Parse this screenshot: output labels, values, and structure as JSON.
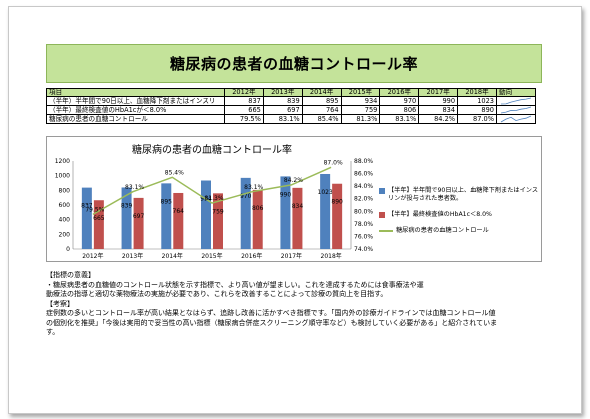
{
  "title": "糖尿病の患者の血糖コントロール率",
  "table": {
    "header_item": "項目",
    "years": [
      "2012年",
      "2013年",
      "2014年",
      "2015年",
      "2016年",
      "2017年",
      "2018年"
    ],
    "header_trend": "動向",
    "rows": [
      {
        "label": "（半年）半年間で90日以上、血糖降下剤またはインスリ",
        "values": [
          "837",
          "839",
          "895",
          "934",
          "970",
          "990",
          "1023"
        ]
      },
      {
        "label": "（半年）最終検査値のHbA1cが＜8.0%",
        "values": [
          "665",
          "697",
          "764",
          "759",
          "806",
          "834",
          "890"
        ]
      },
      {
        "label": "糖尿病の患者の血糖コントロール",
        "values": [
          "79.5%",
          "83.1%",
          "85.4%",
          "81.3%",
          "83.1%",
          "84.2%",
          "87.0%"
        ]
      }
    ]
  },
  "chart_data": {
    "type": "bar+line",
    "title": "糖尿病の患者の血糖コントロール率",
    "categories": [
      "2012年",
      "2013年",
      "2014年",
      "2015年",
      "2016年",
      "2017年",
      "2018年"
    ],
    "series": [
      {
        "name": "【半年】半年間で90日以上、血糖降下剤またはインスリンが投与された患者数。",
        "type": "bar",
        "axis": "left",
        "color": "#4f81bd",
        "values": [
          837,
          839,
          895,
          934,
          970,
          990,
          1023
        ]
      },
      {
        "name": "【半年】最終検査値のHbA1c＜8.0%",
        "type": "bar",
        "axis": "left",
        "color": "#c0504d",
        "values": [
          665,
          697,
          764,
          759,
          806,
          834,
          890
        ]
      },
      {
        "name": "糖尿病の患者の血糖コントロール",
        "type": "line",
        "axis": "right",
        "color": "#9bbb59",
        "values": [
          79.5,
          83.1,
          85.4,
          81.3,
          83.1,
          84.2,
          87.0
        ]
      }
    ],
    "line_labels": [
      "79.5%",
      "83.1%",
      "85.4%",
      "81.3%",
      "83.1%",
      "84.2%",
      "87.0%"
    ],
    "y_left": {
      "min": 0,
      "max": 1200,
      "ticks": [
        "0",
        "200",
        "400",
        "600",
        "800",
        "1000",
        "1200"
      ]
    },
    "y_right": {
      "min": 74,
      "max": 88,
      "ticks": [
        "74.0%",
        "76.0%",
        "78.0%",
        "80.0%",
        "82.0%",
        "84.0%",
        "86.0%",
        "88.0%"
      ]
    },
    "legend_position": "right",
    "grid": false
  },
  "notes": {
    "meaning_heading": "【指標の意義】",
    "meaning_text": "・糖尿病患者の血糖値のコントロール状態を示す指標で、より高い値が望ましい。これを達成するためには食事療法や運\n動療法の指導と適切な薬物療法の実施が必要であり、これらを改善することによって診療の質向上を目指す。",
    "consideration_heading": "【考察】",
    "consideration_text": "症例数の多いとコントロール率が高い結果となはらず、追跡し改善に活かすべき指標です。「国内外の診療ガイドラインでは血糖コントロール値\nの個別化を推奨」「今後は実用的で妥当性の高い指標（糖尿病合併症スクリーニング順守率など）も検討していく必要がある」と紹介されていま\nす。"
  }
}
